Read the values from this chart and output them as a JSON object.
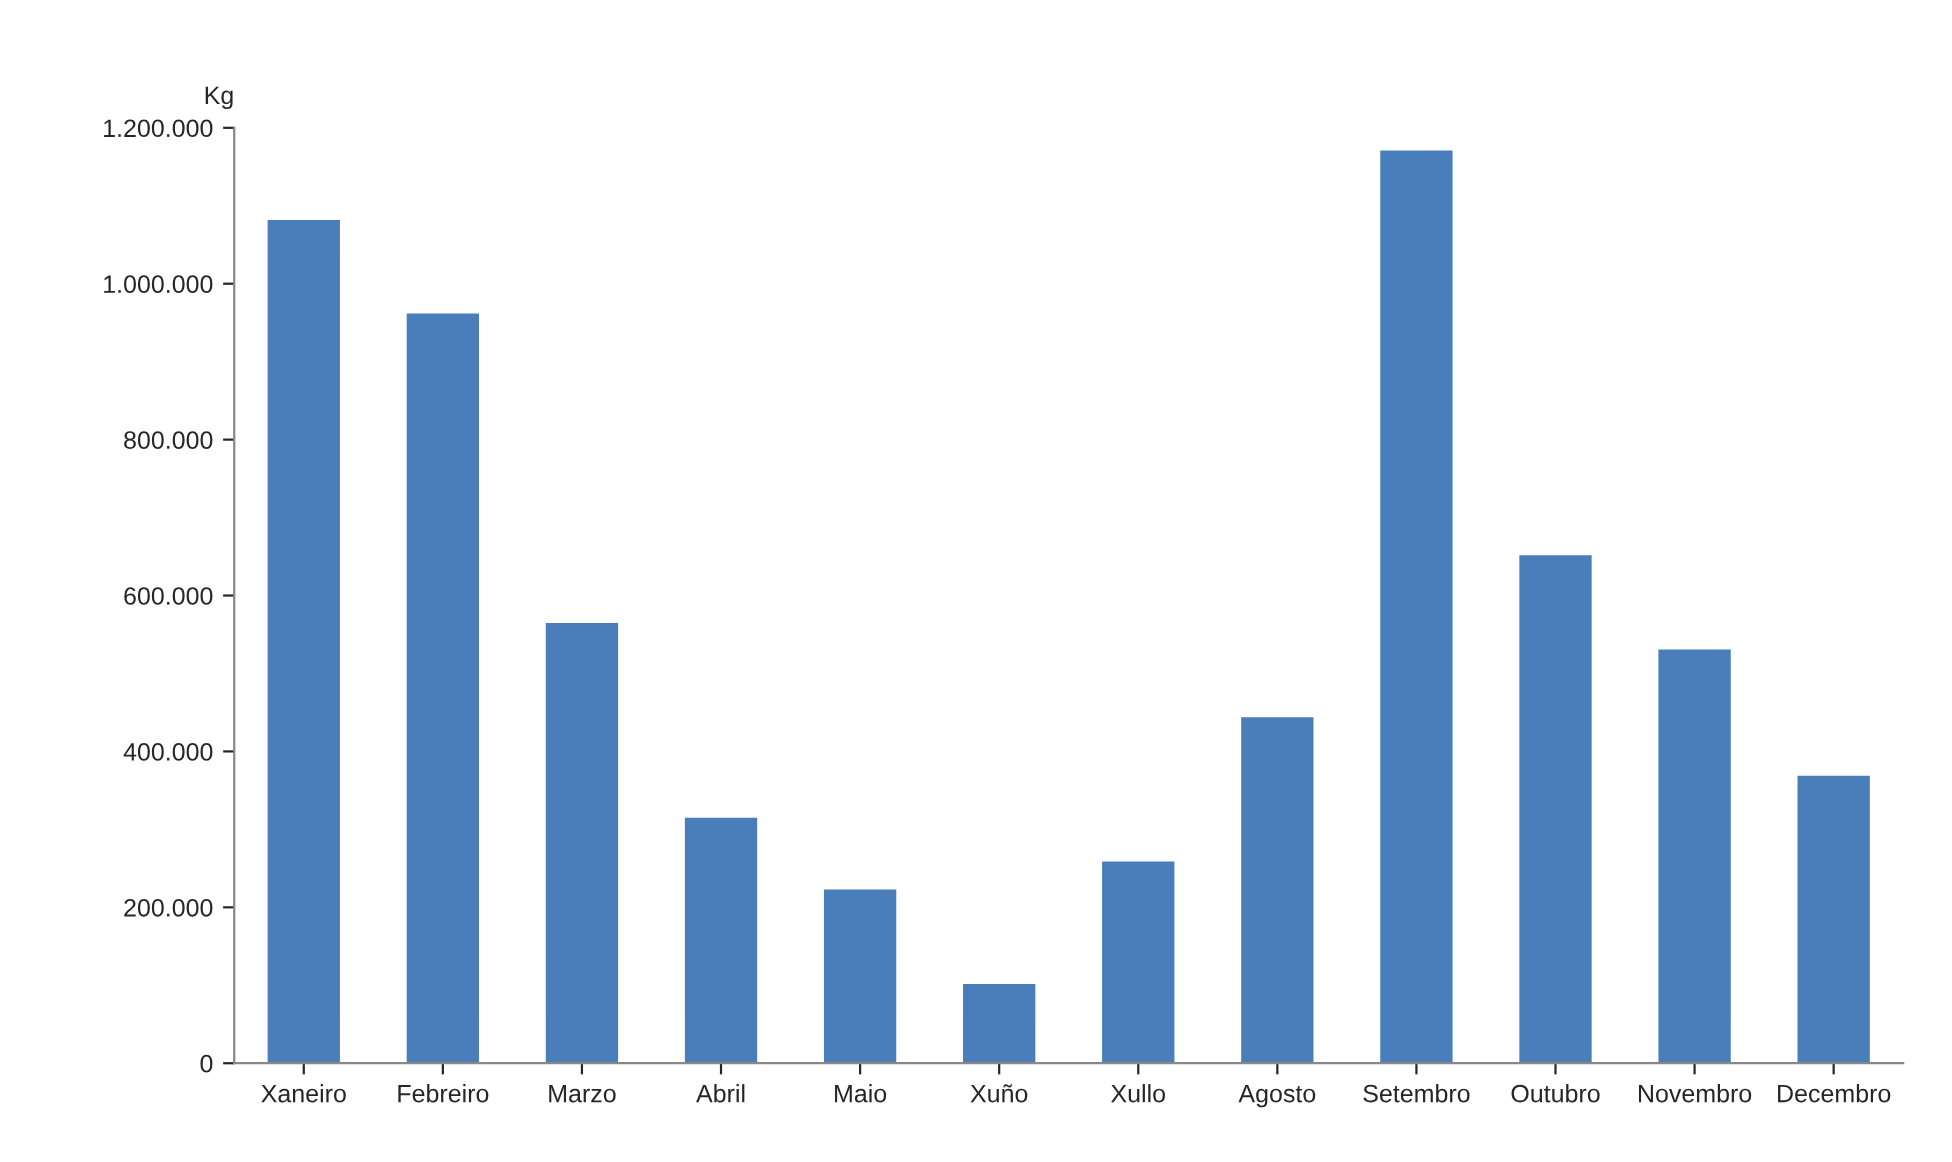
{
  "chart_data": {
    "type": "bar",
    "ylabel": "Kg",
    "categories": [
      "Xaneiro",
      "Febreiro",
      "Marzo",
      "Abril",
      "Maio",
      "Xuño",
      "Xullo",
      "Agosto",
      "Setembro",
      "Outubro",
      "Novembro",
      "Decembro"
    ],
    "values": [
      1080000,
      960000,
      563000,
      313000,
      221000,
      100000,
      257000,
      442000,
      1169000,
      650000,
      529000,
      367000
    ],
    "color": "#4a7ebb",
    "ylim": [
      0,
      1200000
    ],
    "yticks": [
      0,
      {
        "value": 200000,
        "label": "200.000"
      },
      {
        "value": 400000,
        "label": "400.000"
      },
      {
        "value": 600000,
        "label": "600.000"
      },
      {
        "value": 800000,
        "label": "800.000"
      },
      {
        "value": 1000000,
        "label": "1.000.000"
      },
      {
        "value": 1200000,
        "label": "1.200.000"
      }
    ],
    "grid": false
  }
}
